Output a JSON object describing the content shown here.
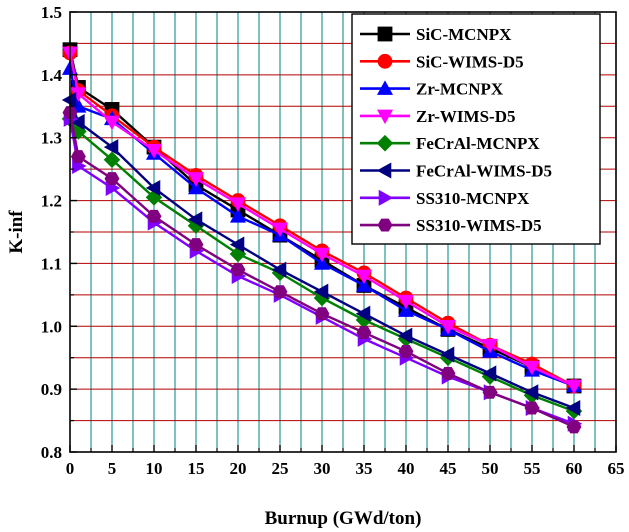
{
  "chart_data": {
    "type": "line",
    "title": "",
    "xlabel": "Burnup (GWd/ton)",
    "ylabel": "K-inf",
    "xlim": [
      0,
      65
    ],
    "ylim": [
      0.8,
      1.5
    ],
    "xticks": [
      "0",
      "5",
      "10",
      "15",
      "20",
      "25",
      "30",
      "35",
      "40",
      "45",
      "50",
      "55",
      "60",
      "65"
    ],
    "yticks": [
      "0.8",
      "0.9",
      "1.0",
      "1.1",
      "1.2",
      "1.3",
      "1.4",
      "1.5"
    ],
    "grid": true,
    "legend_position": "top-right",
    "x": [
      0,
      1,
      5,
      10,
      15,
      20,
      25,
      30,
      35,
      40,
      45,
      50,
      55,
      60
    ],
    "series": [
      {
        "name": "SiC-MCNPX",
        "color": "#000000",
        "marker": "square",
        "values": [
          1.44,
          1.38,
          1.345,
          1.285,
          1.225,
          1.185,
          1.145,
          1.105,
          1.065,
          1.03,
          0.995,
          0.965,
          0.935,
          0.905
        ]
      },
      {
        "name": "SiC-WIMS-D5",
        "color": "#ff0000",
        "marker": "circle",
        "values": [
          1.435,
          1.375,
          1.335,
          1.285,
          1.24,
          1.2,
          1.16,
          1.12,
          1.085,
          1.045,
          1.005,
          0.97,
          0.94,
          0.905
        ]
      },
      {
        "name": "Zr-MCNPX",
        "color": "#0000ff",
        "marker": "triangle-up",
        "values": [
          1.41,
          1.35,
          1.33,
          1.275,
          1.22,
          1.175,
          1.145,
          1.1,
          1.065,
          1.025,
          0.995,
          0.96,
          0.93,
          0.905
        ]
      },
      {
        "name": "Zr-WIMS-D5",
        "color": "#ff00ff",
        "marker": "triangle-down",
        "values": [
          1.435,
          1.37,
          1.325,
          1.28,
          1.235,
          1.195,
          1.155,
          1.115,
          1.08,
          1.04,
          1.0,
          0.97,
          0.935,
          0.905
        ]
      },
      {
        "name": "FeCrAl-MCNPX",
        "color": "#008000",
        "marker": "diamond",
        "values": [
          1.33,
          1.31,
          1.265,
          1.205,
          1.16,
          1.115,
          1.085,
          1.045,
          1.01,
          0.98,
          0.95,
          0.92,
          0.89,
          0.865
        ]
      },
      {
        "name": "FeCrAl-WIMS-D5",
        "color": "#000080",
        "marker": "triangle-left",
        "values": [
          1.36,
          1.325,
          1.285,
          1.22,
          1.17,
          1.13,
          1.09,
          1.055,
          1.02,
          0.985,
          0.955,
          0.925,
          0.895,
          0.87
        ]
      },
      {
        "name": "SS310-MCNPX",
        "color": "#8000ff",
        "marker": "triangle-right",
        "values": [
          1.33,
          1.255,
          1.22,
          1.165,
          1.12,
          1.08,
          1.05,
          1.015,
          0.98,
          0.95,
          0.92,
          0.895,
          0.87,
          0.845
        ]
      },
      {
        "name": "SS310-WIMS-D5",
        "color": "#800080",
        "marker": "hexagon",
        "values": [
          1.34,
          1.27,
          1.235,
          1.175,
          1.13,
          1.09,
          1.055,
          1.02,
          0.99,
          0.96,
          0.925,
          0.895,
          0.87,
          0.84
        ]
      }
    ]
  }
}
